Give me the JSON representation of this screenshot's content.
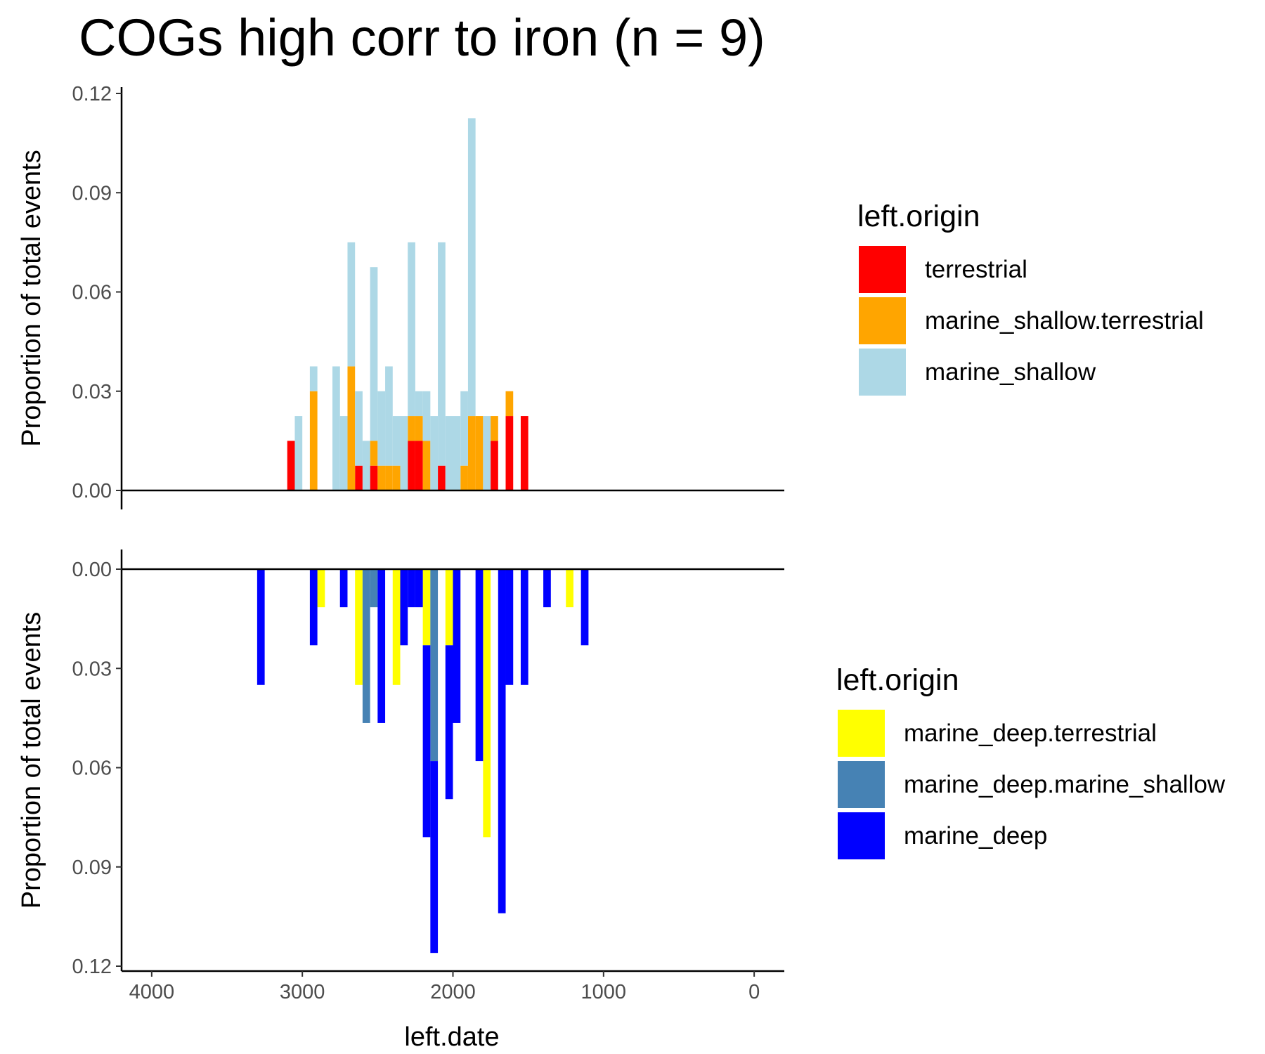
{
  "chart_data": {
    "title": "COGs high corr to iron (n = 9)",
    "xlabel": "left.date",
    "x_ticks": [
      4000,
      3000,
      2000,
      1000,
      0
    ],
    "xlim": [
      4200,
      -200
    ],
    "x_reversed": true,
    "bin_width": 50,
    "panels": [
      {
        "type": "bar",
        "stacked": true,
        "direction": "up",
        "ylabel": "Proportion of total events",
        "ylim": [
          0,
          0.12
        ],
        "y_ticks": [
          "0.00",
          "0.03",
          "0.06",
          "0.09",
          "0.12"
        ],
        "legend_title": "left.origin",
        "series": [
          {
            "name": "terrestrial",
            "color": "#ff0000",
            "data": [
              [
                3075,
                0.015
              ],
              [
                2625,
                0.0075
              ],
              [
                2525,
                0.0075
              ],
              [
                2275,
                0.015
              ],
              [
                2225,
                0.015
              ],
              [
                2075,
                0.0075
              ],
              [
                1725,
                0.015
              ],
              [
                1625,
                0.0225
              ],
              [
                1525,
                0.0225
              ]
            ]
          },
          {
            "name": "marine_shallow.terrestrial",
            "color": "#ffa500",
            "data": [
              [
                2925,
                0.03
              ],
              [
                2675,
                0.0375
              ],
              [
                2525,
                0.0075
              ],
              [
                2475,
                0.0075
              ],
              [
                2425,
                0.0075
              ],
              [
                2375,
                0.0075
              ],
              [
                2275,
                0.0075
              ],
              [
                2225,
                0.0075
              ],
              [
                2175,
                0.015
              ],
              [
                1925,
                0.0075
              ],
              [
                1875,
                0.0225
              ],
              [
                1825,
                0.0225
              ],
              [
                1725,
                0.0075
              ],
              [
                1625,
                0.0075
              ]
            ]
          },
          {
            "name": "marine_shallow",
            "color": "#add8e6",
            "data": [
              [
                3025,
                0.0225
              ],
              [
                2925,
                0.0075
              ],
              [
                2775,
                0.0375
              ],
              [
                2725,
                0.0225
              ],
              [
                2675,
                0.0375
              ],
              [
                2625,
                0.0225
              ],
              [
                2575,
                0.015
              ],
              [
                2525,
                0.0525
              ],
              [
                2475,
                0.0225
              ],
              [
                2425,
                0.03
              ],
              [
                2375,
                0.015
              ],
              [
                2325,
                0.0225
              ],
              [
                2275,
                0.0525
              ],
              [
                2225,
                0.0075
              ],
              [
                2175,
                0.015
              ],
              [
                2125,
                0.0225
              ],
              [
                2075,
                0.0675
              ],
              [
                2025,
                0.0225
              ],
              [
                1975,
                0.0225
              ],
              [
                1925,
                0.0225
              ],
              [
                1875,
                0.09
              ],
              [
                1775,
                0.0225
              ]
            ]
          }
        ]
      },
      {
        "type": "bar",
        "stacked": true,
        "direction": "down",
        "ylabel": "Proportion of total events",
        "ylim": [
          0,
          0.12
        ],
        "y_ticks": [
          "0.00",
          "0.03",
          "0.06",
          "0.09",
          "0.12"
        ],
        "legend_title": "left.origin",
        "series": [
          {
            "name": "marine_deep.terrestrial",
            "color": "#ffff00",
            "data": [
              [
                2875,
                0.0115
              ],
              [
                2625,
                0.035
              ],
              [
                2375,
                0.035
              ],
              [
                2175,
                0.023
              ],
              [
                2025,
                0.023
              ],
              [
                1775,
                0.081
              ],
              [
                1225,
                0.0115
              ]
            ]
          },
          {
            "name": "marine_deep.marine_shallow",
            "color": "#4682b4",
            "data": [
              [
                2575,
                0.0465
              ],
              [
                2525,
                0.0115
              ],
              [
                2125,
                0.058
              ]
            ]
          },
          {
            "name": "marine_deep",
            "color": "#0000ff",
            "data": [
              [
                3275,
                0.035
              ],
              [
                2925,
                0.023
              ],
              [
                2725,
                0.0115
              ],
              [
                2475,
                0.0465
              ],
              [
                2325,
                0.023
              ],
              [
                2275,
                0.0115
              ],
              [
                2225,
                0.0115
              ],
              [
                2175,
                0.058
              ],
              [
                2125,
                0.058
              ],
              [
                2025,
                0.0465
              ],
              [
                1975,
                0.0465
              ],
              [
                1825,
                0.058
              ],
              [
                1675,
                0.104
              ],
              [
                1625,
                0.035
              ],
              [
                1525,
                0.035
              ],
              [
                1375,
                0.0115
              ],
              [
                1125,
                0.023
              ]
            ]
          }
        ]
      }
    ]
  }
}
